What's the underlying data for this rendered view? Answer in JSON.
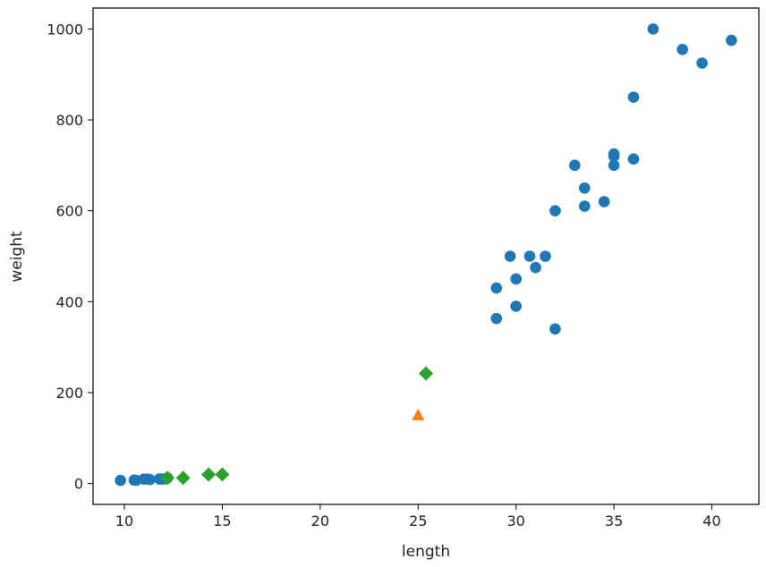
{
  "chart_data": {
    "type": "scatter",
    "title": "",
    "xlabel": "length",
    "ylabel": "weight",
    "xlim": [
      8.4,
      42.4
    ],
    "ylim": [
      -46,
      1046
    ],
    "xticks": [
      10,
      15,
      20,
      25,
      30,
      35,
      40
    ],
    "yticks": [
      0,
      200,
      400,
      600,
      800,
      1000
    ],
    "grid": false,
    "legend": "none",
    "series": [
      {
        "marker": "circle",
        "color": "#1f77b4",
        "points": [
          [
            9.8,
            6.7
          ],
          [
            10.5,
            7.5
          ],
          [
            10.6,
            7.0
          ],
          [
            11.0,
            9.7
          ],
          [
            11.2,
            9.8
          ],
          [
            11.3,
            8.7
          ],
          [
            11.8,
            10.0
          ],
          [
            11.8,
            9.9
          ],
          [
            12.0,
            9.8
          ],
          [
            12.2,
            12.2
          ],
          [
            29.0,
            430
          ],
          [
            29.0,
            363
          ],
          [
            29.7,
            500
          ],
          [
            30.0,
            450
          ],
          [
            30.0,
            390
          ],
          [
            30.7,
            500
          ],
          [
            31.0,
            475
          ],
          [
            31.5,
            500
          ],
          [
            32.0,
            340
          ],
          [
            32.0,
            600
          ],
          [
            33.0,
            700
          ],
          [
            33.5,
            610
          ],
          [
            33.5,
            650
          ],
          [
            34.5,
            620
          ],
          [
            35.0,
            700
          ],
          [
            35.0,
            725
          ],
          [
            35.0,
            720
          ],
          [
            36.0,
            714
          ],
          [
            36.0,
            850
          ],
          [
            37.0,
            1000
          ],
          [
            38.5,
            955
          ],
          [
            39.5,
            925
          ],
          [
            41.0,
            975
          ]
        ]
      },
      {
        "marker": "triangle",
        "color": "#ff7f0e",
        "points": [
          [
            25.0,
            150
          ]
        ]
      },
      {
        "marker": "diamond",
        "color": "#2ca02c",
        "points": [
          [
            12.2,
            12.2
          ],
          [
            13.0,
            12.2
          ],
          [
            14.3,
            19.7
          ],
          [
            15.0,
            19.9
          ],
          [
            25.4,
            242
          ]
        ]
      }
    ]
  }
}
